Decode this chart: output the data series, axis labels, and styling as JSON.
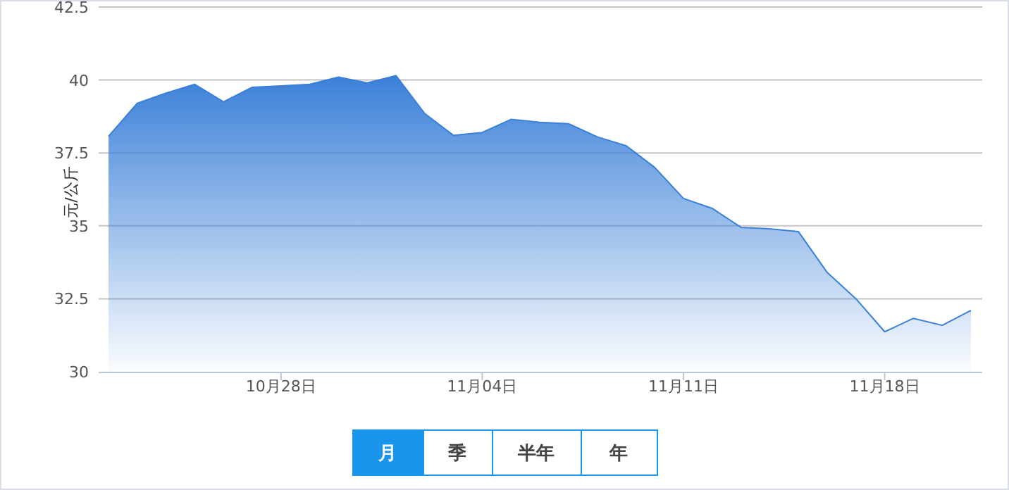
{
  "chart_data": {
    "type": "area",
    "ylabel": "元/公斤",
    "categories": [
      null,
      null,
      null,
      null,
      null,
      null,
      "10月28日",
      null,
      null,
      null,
      null,
      null,
      null,
      "11月04日",
      null,
      null,
      null,
      null,
      null,
      null,
      "11月11日",
      null,
      null,
      null,
      null,
      null,
      null,
      "11月18日",
      null,
      null,
      null
    ],
    "series": [
      {
        "color": "#3a80d8",
        "values": [
          38.07,
          39.2,
          39.55,
          39.85,
          39.25,
          39.75,
          39.8,
          39.85,
          40.1,
          39.9,
          40.15,
          38.85,
          38.1,
          38.2,
          38.65,
          38.55,
          38.5,
          38.05,
          37.75,
          37.0,
          35.94,
          35.6,
          34.95,
          34.9,
          34.8,
          33.4,
          32.5,
          31.37,
          31.83,
          31.59,
          32.1
        ]
      }
    ],
    "ylim": [
      30,
      42.5
    ],
    "yticks": [
      30,
      32.5,
      35,
      37.5,
      40,
      42.5
    ],
    "grid": "y",
    "annotations": [
      "月",
      "季",
      "半年",
      "年"
    ]
  }
}
